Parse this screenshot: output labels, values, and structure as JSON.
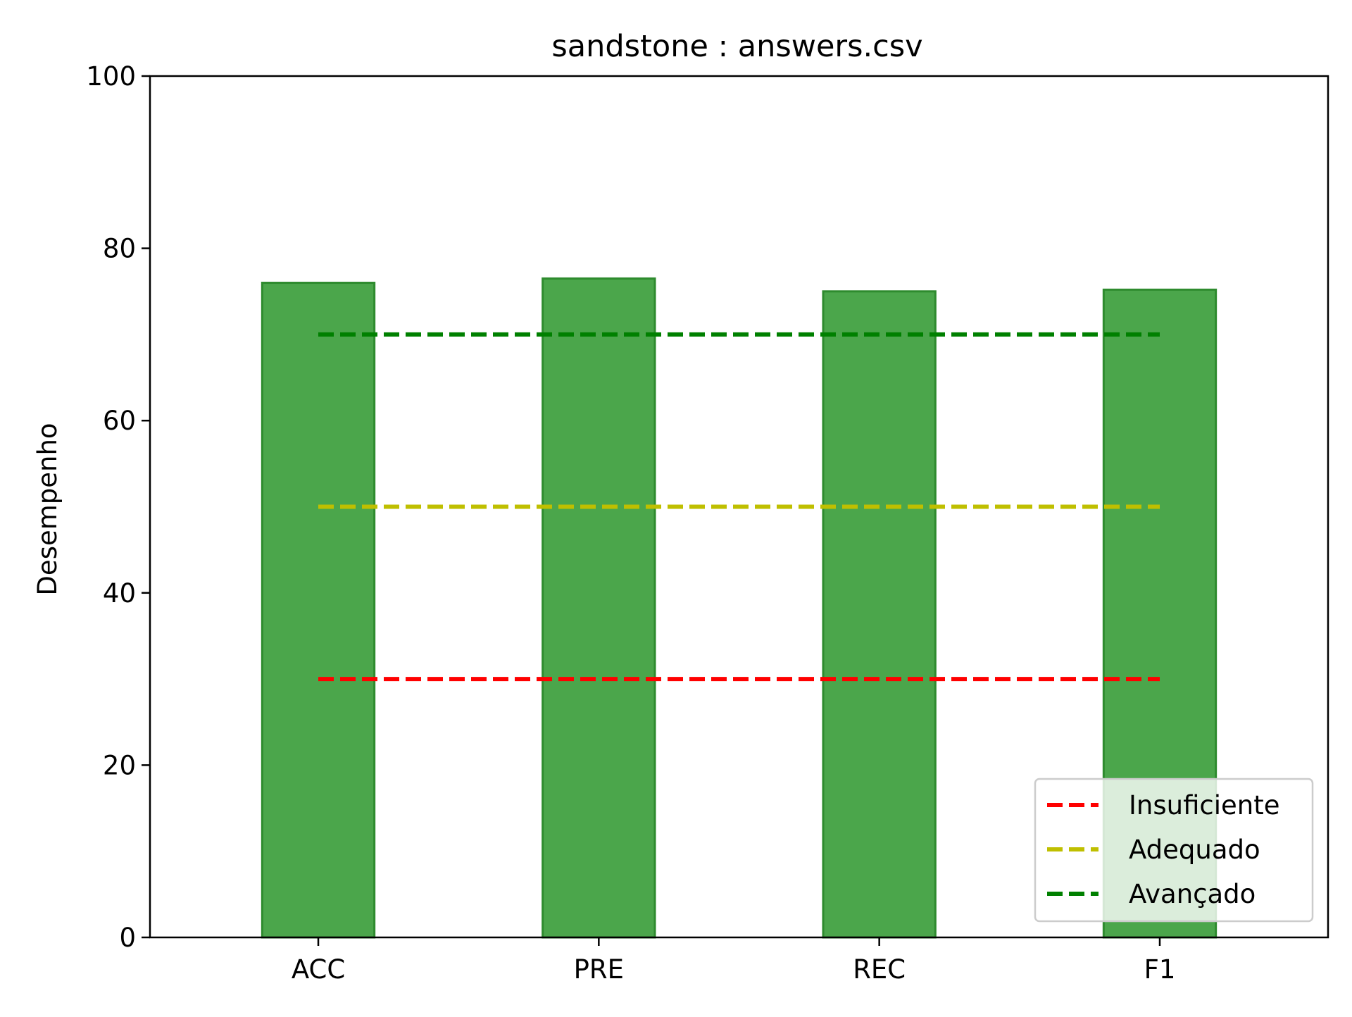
{
  "chart_data": {
    "type": "bar",
    "title": "sandstone : answers.csv",
    "xlabel": "",
    "ylabel": "Desempenho",
    "categories": [
      "ACC",
      "PRE",
      "REC",
      "F1"
    ],
    "values": [
      76.0,
      76.5,
      75.0,
      75.2
    ],
    "bar_color": "#4ba64b",
    "bar_edge_color": "#2e8b2e",
    "ylim": [
      0,
      100
    ],
    "yticks": [
      0,
      20,
      40,
      60,
      80,
      100
    ],
    "grid": false,
    "legend_position": "lower right",
    "thresholds": [
      {
        "name": "Insuficiente",
        "value": 30,
        "color": "#ff0000"
      },
      {
        "name": "Adequado",
        "value": 50,
        "color": "#bfbf00"
      },
      {
        "name": "Avançado",
        "value": 70,
        "color": "#008000"
      }
    ]
  }
}
